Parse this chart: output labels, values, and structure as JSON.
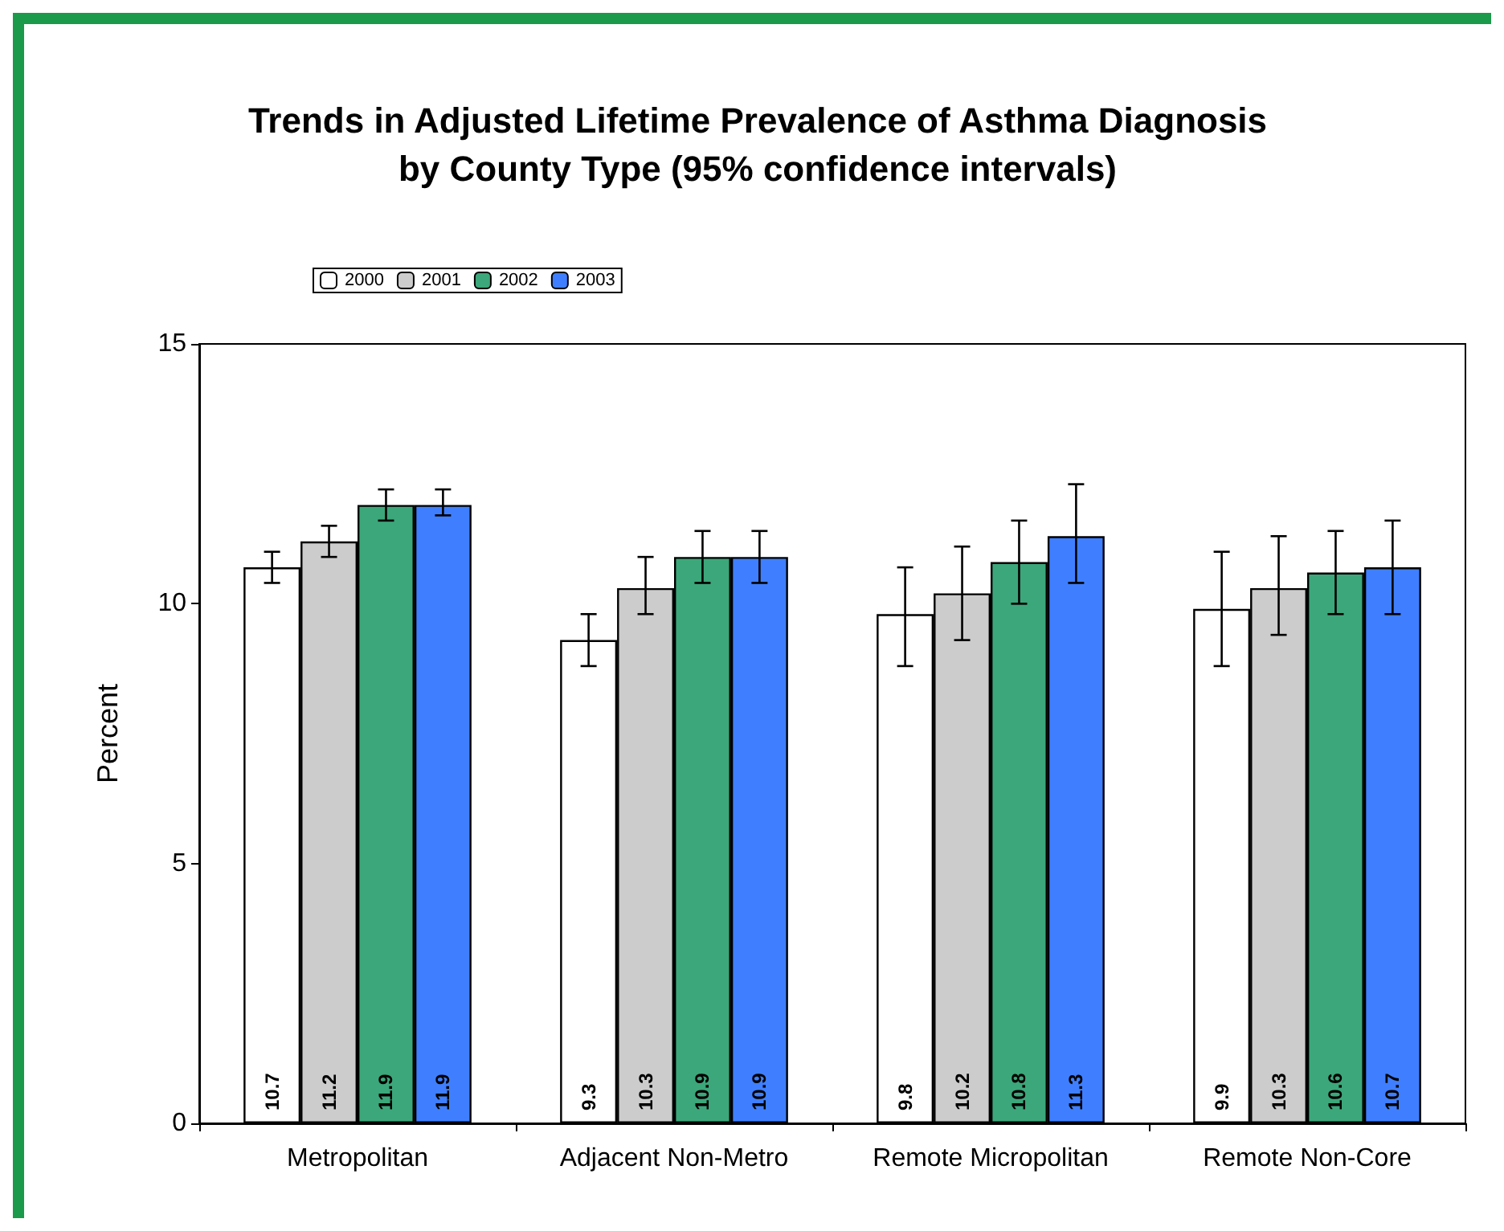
{
  "chart_data": {
    "type": "bar",
    "title": "Trends in Adjusted Lifetime Prevalence of Asthma Diagnosis\nby County Type (95% confidence intervals)",
    "ylabel": "Percent",
    "categories": [
      "Metropolitan",
      "Adjacent Non-Metro",
      "Remote Micropolitan",
      "Remote Non-Core"
    ],
    "series": [
      {
        "name": "2000",
        "color": "#ffffff",
        "values": [
          10.7,
          9.3,
          9.8,
          9.9
        ],
        "errors": [
          [
            10.4,
            11.0
          ],
          [
            8.8,
            9.8
          ],
          [
            8.8,
            10.7
          ],
          [
            8.8,
            11.0
          ]
        ]
      },
      {
        "name": "2001",
        "color": "#cccccc",
        "values": [
          11.2,
          10.3,
          10.2,
          10.3
        ],
        "errors": [
          [
            10.9,
            11.5
          ],
          [
            9.8,
            10.9
          ],
          [
            9.3,
            11.1
          ],
          [
            9.4,
            11.3
          ]
        ]
      },
      {
        "name": "2002",
        "color": "#3ca77a",
        "values": [
          11.9,
          10.9,
          10.8,
          10.6
        ],
        "errors": [
          [
            11.6,
            12.2
          ],
          [
            10.4,
            11.4
          ],
          [
            10.0,
            11.6
          ],
          [
            9.8,
            11.4
          ]
        ]
      },
      {
        "name": "2003",
        "color": "#3f7fff",
        "values": [
          11.9,
          10.9,
          11.3,
          10.7
        ],
        "errors": [
          [
            11.7,
            12.2
          ],
          [
            10.4,
            11.4
          ],
          [
            10.4,
            12.3
          ],
          [
            9.8,
            11.6
          ]
        ]
      }
    ],
    "ylim": [
      0,
      15
    ],
    "yticks": [
      0,
      5,
      10,
      15
    ],
    "grid": false,
    "legend": "top",
    "data_labels": true
  }
}
